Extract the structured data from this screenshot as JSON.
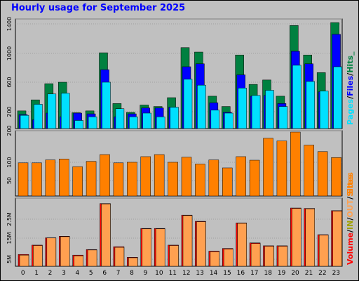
{
  "title": "Hourly usage for September 2025",
  "colors": {
    "hits": "#008040",
    "files": "#0000ff",
    "pages": "#00e0ff",
    "sites": "#ff8000",
    "volume_in": "#ff0000",
    "volume_out": "#ffa050",
    "frame": "#c0c0c0",
    "grid": "#808080"
  },
  "chart_data": [
    {
      "type": "bar",
      "name": "hits-files-pages",
      "categories": [
        "0",
        "1",
        "2",
        "3",
        "4",
        "5",
        "6",
        "7",
        "8",
        "9",
        "10",
        "11",
        "12",
        "13",
        "14",
        "15",
        "16",
        "17",
        "18",
        "19",
        "20",
        "21",
        "22",
        "23"
      ],
      "legend": [
        "Pages",
        "/",
        "Files",
        "/",
        "Hits",
        "_"
      ],
      "yticks": [
        "200",
        "600",
        "1000",
        "1400"
      ],
      "ylim": [
        0,
        1470
      ],
      "series": [
        {
          "name": "Hits",
          "values": [
            240,
            390,
            610,
            630,
            215,
            240,
            1030,
            340,
            220,
            320,
            300,
            420,
            1100,
            1040,
            440,
            300,
            1000,
            600,
            660,
            440,
            1400,
            1000,
            760,
            1440
          ]
        },
        {
          "name": "Files",
          "values": [
            190,
            120,
            210,
            160,
            210,
            200,
            800,
            160,
            200,
            280,
            280,
            290,
            840,
            880,
            350,
            220,
            730,
            440,
            450,
            340,
            1050,
            880,
            500,
            1280
          ]
        },
        {
          "name": "Pages",
          "values": [
            180,
            330,
            470,
            480,
            110,
            160,
            630,
            270,
            160,
            210,
            160,
            290,
            670,
            590,
            250,
            210,
            550,
            450,
            520,
            300,
            860,
            640,
            510,
            840
          ]
        }
      ]
    },
    {
      "type": "bar",
      "name": "sites",
      "categories": [
        "0",
        "1",
        "2",
        "3",
        "4",
        "5",
        "6",
        "7",
        "8",
        "9",
        "10",
        "11",
        "12",
        "13",
        "14",
        "15",
        "16",
        "17",
        "18",
        "19",
        "20",
        "21",
        "22",
        "23"
      ],
      "legend": [
        "Sites"
      ],
      "yticks": [
        "50",
        "100",
        "200"
      ],
      "ylim": [
        0,
        216
      ],
      "series": [
        {
          "name": "Sites",
          "values": [
            112,
            112,
            122,
            125,
            99,
            117,
            140,
            112,
            114,
            133,
            140,
            114,
            131,
            108,
            122,
            95,
            133,
            121,
            195,
            186,
            216,
            172,
            150,
            130
          ]
        }
      ]
    },
    {
      "type": "bar",
      "name": "volume",
      "categories": [
        "0",
        "1",
        "2",
        "3",
        "4",
        "5",
        "6",
        "7",
        "8",
        "9",
        "10",
        "11",
        "12",
        "13",
        "14",
        "15",
        "16",
        "17",
        "18",
        "19",
        "20",
        "21",
        "22",
        "23"
      ],
      "legend": [
        "Volume",
        "/",
        "IN",
        "/",
        "OUT",
        "/",
        "Sites"
      ],
      "yticks": [
        "5M",
        "15M",
        "2.5M"
      ],
      "ylim": [
        0,
        30
      ],
      "series": [
        {
          "name": "IN",
          "values": [
            5.3,
            9.5,
            12.8,
            13.5,
            5.0,
            7.5,
            28.2,
            8.8,
            4.0,
            17.0,
            17.0,
            9.5,
            23.0,
            20.2,
            6.8,
            8.0,
            19.5,
            10.5,
            9.2,
            9.2,
            26.2,
            26.0,
            14.2,
            25.0
          ]
        },
        {
          "name": "OUT",
          "values": [
            5.0,
            9.3,
            12.7,
            13.3,
            4.7,
            7.3,
            28.0,
            8.5,
            3.8,
            16.8,
            16.8,
            9.3,
            22.8,
            20.0,
            6.5,
            7.7,
            19.3,
            10.2,
            9.0,
            9.0,
            26.0,
            25.8,
            14.0,
            24.8
          ]
        }
      ]
    }
  ]
}
